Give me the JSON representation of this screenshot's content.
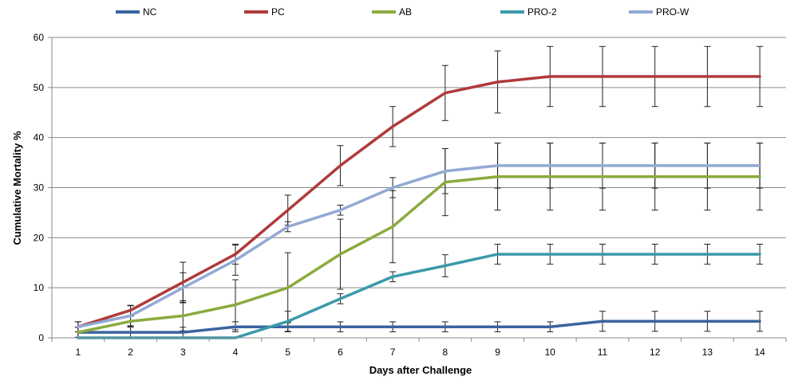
{
  "chart_data": {
    "type": "line",
    "xlabel": "Days after Challenge",
    "ylabel": "Cumulative Mortality %",
    "ylim": [
      0,
      60
    ],
    "yticks": [
      0,
      10,
      20,
      30,
      40,
      50,
      60
    ],
    "x": [
      1,
      2,
      3,
      4,
      5,
      6,
      7,
      8,
      9,
      10,
      11,
      12,
      13,
      14
    ],
    "grid": "horizontal",
    "legend": "top",
    "series": [
      {
        "name": "NC",
        "color": "#3a64a0",
        "values": [
          1.1,
          1.1,
          1.1,
          2.2,
          2.2,
          2.2,
          2.2,
          2.2,
          2.2,
          2.2,
          3.3,
          3.3,
          3.3,
          3.3
        ],
        "errors": [
          1.0,
          1.0,
          1.0,
          1.0,
          1.0,
          1.0,
          1.0,
          1.0,
          1.0,
          1.0,
          2.0,
          2.0,
          2.0,
          2.0
        ]
      },
      {
        "name": "PC",
        "color": "#b03a3a",
        "values": [
          2.2,
          5.5,
          11.1,
          16.7,
          25.5,
          34.4,
          42.2,
          48.9,
          51.1,
          52.2,
          52.2,
          52.2,
          52.2,
          52.2
        ],
        "errors": [
          1.0,
          1.0,
          4.0,
          2.0,
          3.0,
          4.0,
          4.0,
          5.5,
          6.2,
          6.0,
          6.0,
          6.0,
          6.0,
          6.0
        ]
      },
      {
        "name": "AB",
        "color": "#8aab3d",
        "values": [
          1.1,
          3.3,
          4.4,
          6.6,
          10.0,
          16.7,
          22.2,
          31.1,
          32.2,
          32.2,
          32.2,
          32.2,
          32.2,
          32.2
        ],
        "errors": [
          1.0,
          1.0,
          3.0,
          5.0,
          7.0,
          7.0,
          7.2,
          6.7,
          6.7,
          6.7,
          6.7,
          6.7,
          6.7,
          6.7
        ]
      },
      {
        "name": "PRO-2",
        "color": "#3a9aaa",
        "values": [
          0,
          0,
          0,
          0,
          3.3,
          7.8,
          12.2,
          14.4,
          16.7,
          16.7,
          16.7,
          16.7,
          16.7,
          16.7
        ],
        "errors": [
          0,
          0,
          0,
          0,
          2.0,
          1.0,
          1.0,
          2.2,
          2.0,
          2.0,
          2.0,
          2.0,
          2.0,
          2.0
        ]
      },
      {
        "name": "PRO-W",
        "color": "#92a9d4",
        "values": [
          2.2,
          4.4,
          10.0,
          15.5,
          22.2,
          25.5,
          30.0,
          33.3,
          34.4,
          34.4,
          34.4,
          34.4,
          34.4,
          34.4
        ],
        "errors": [
          1.0,
          2.0,
          3.0,
          3.0,
          1.0,
          1.0,
          2.0,
          4.5,
          4.5,
          4.5,
          4.5,
          4.5,
          4.5,
          4.5
        ]
      }
    ]
  }
}
